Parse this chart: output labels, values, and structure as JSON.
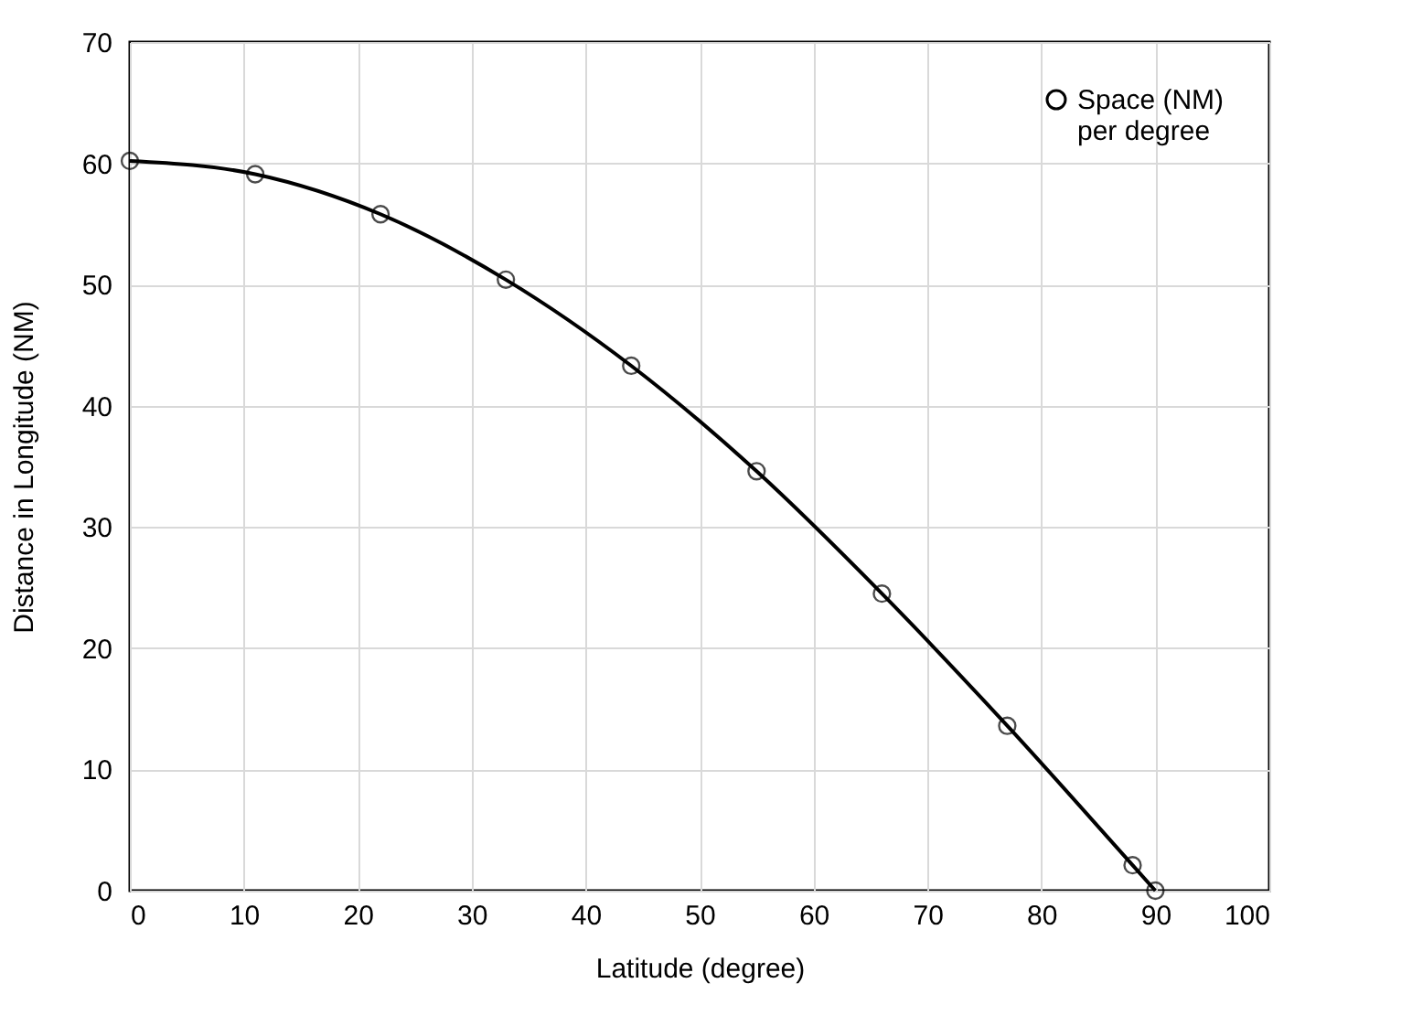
{
  "chart_data": {
    "type": "line",
    "xlabel": "Latitude (degree)",
    "ylabel": "Distance in Longitude (NM)",
    "x": [
      0,
      11,
      22,
      33,
      44,
      55,
      66,
      77,
      88,
      90
    ],
    "series": [
      {
        "name": "Space (NM)\nper degree",
        "color": "#000000",
        "values": [
          60.2,
          59.1,
          55.8,
          50.4,
          43.3,
          34.6,
          24.5,
          13.6,
          2.1,
          0
        ]
      }
    ],
    "xlim": [
      0,
      100
    ],
    "xticks": [
      0,
      10,
      20,
      30,
      40,
      50,
      60,
      70,
      80,
      90,
      100
    ],
    "ylim": [
      0,
      70
    ],
    "yticks": [
      0,
      10,
      20,
      30,
      40,
      50,
      60,
      70
    ],
    "grid": true,
    "legend": "top right",
    "marker": "circle",
    "line_style": "solid"
  }
}
